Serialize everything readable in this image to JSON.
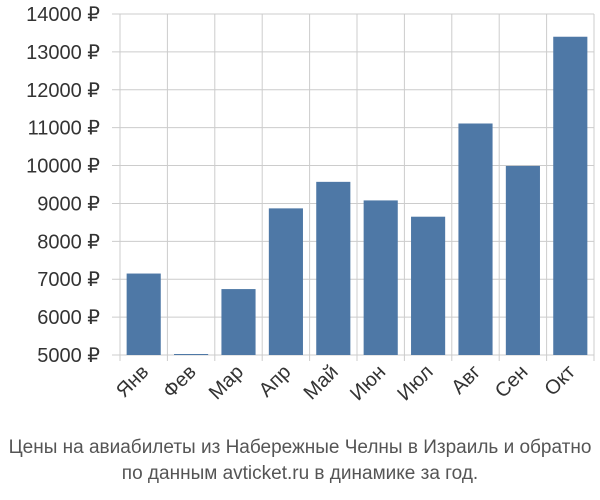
{
  "chart_data": {
    "type": "bar",
    "categories": [
      "Янв",
      "Фев",
      "Мар",
      "Апр",
      "Май",
      "Июн",
      "Июл",
      "Авг",
      "Сен",
      "Окт"
    ],
    "values": [
      7150,
      5020,
      6740,
      8870,
      9570,
      9080,
      8650,
      11110,
      9990,
      13400
    ],
    "ylim": [
      5000,
      14000
    ],
    "yticks": [
      5000,
      6000,
      7000,
      8000,
      9000,
      10000,
      11000,
      12000,
      13000,
      14000
    ],
    "ytick_suffix": " ₽",
    "grid": true,
    "bar_color": "#4e78a6",
    "grid_color": "#cccccc"
  },
  "caption": {
    "line1": "Цены на авиабилеты из Набережные Челны в Израиль и обратно",
    "line2": "по данным avticket.ru в динамике за год."
  }
}
